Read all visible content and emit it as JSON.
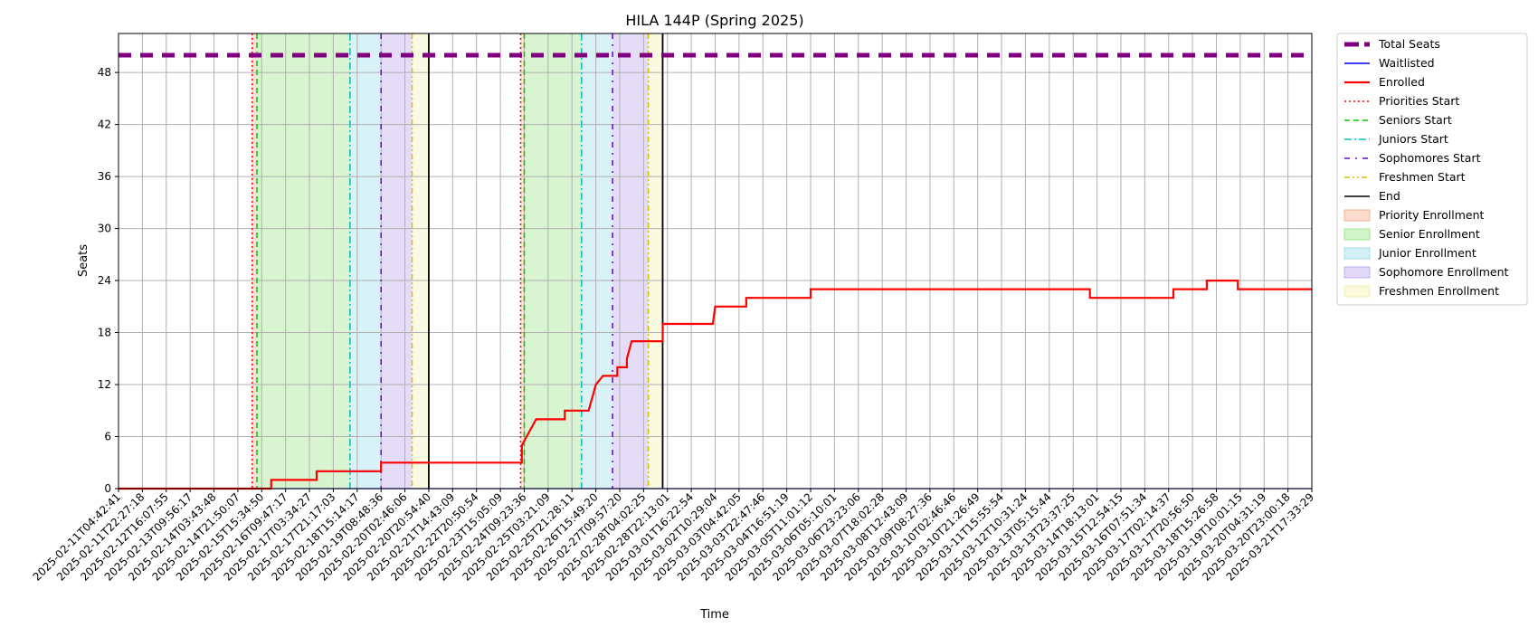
{
  "chart_data": {
    "type": "line",
    "title": "HILA 144P (Spring 2025)",
    "xlabel": "Time",
    "ylabel": "Seats",
    "ylim": [
      0,
      52.5
    ],
    "xlim": [
      0,
      50
    ],
    "y_ticks": [
      0,
      6,
      12,
      18,
      24,
      30,
      36,
      42,
      48
    ],
    "grid": true,
    "legend_position": "outside-right",
    "x_tick_labels": [
      "2025-02-11T04:42:41",
      "2025-02-11T22:27:18",
      "2025-02-12T16:07:55",
      "2025-02-13T09:56:17",
      "2025-02-14T03:43:48",
      "2025-02-14T21:50:07",
      "2025-02-15T15:34:50",
      "2025-02-16T09:47:17",
      "2025-02-17T03:34:27",
      "2025-02-17T21:17:03",
      "2025-02-18T15:14:17",
      "2025-02-19T08:48:36",
      "2025-02-20T02:46:06",
      "2025-02-20T20:54:40",
      "2025-02-21T14:43:09",
      "2025-02-22T20:50:54",
      "2025-02-23T15:05:09",
      "2025-02-24T09:23:36",
      "2025-02-25T03:21:09",
      "2025-02-25T21:28:11",
      "2025-02-26T15:49:20",
      "2025-02-27T09:57:20",
      "2025-02-28T04:02:25",
      "2025-02-28T22:13:01",
      "2025-03-01T16:22:54",
      "2025-03-02T10:29:04",
      "2025-03-03T04:42:05",
      "2025-03-03T22:47:46",
      "2025-03-04T16:51:19",
      "2025-03-05T11:01:12",
      "2025-03-06T05:10:01",
      "2025-03-06T23:23:06",
      "2025-03-07T18:02:28",
      "2025-03-08T12:43:09",
      "2025-03-09T08:27:36",
      "2025-03-10T02:46:46",
      "2025-03-10T21:26:49",
      "2025-03-11T15:55:54",
      "2025-03-12T10:31:24",
      "2025-03-13T05:15:44",
      "2025-03-13T23:37:25",
      "2025-03-14T18:13:01",
      "2025-03-15T12:54:15",
      "2025-03-16T07:51:34",
      "2025-03-17T02:14:37",
      "2025-03-17T20:56:50",
      "2025-03-18T15:26:58",
      "2025-03-19T10:01:15",
      "2025-03-20T04:31:19",
      "2025-03-20T23:00:18",
      "2025-03-21T17:33:29"
    ],
    "series": [
      {
        "name": "Total Seats",
        "color": "#800080",
        "style": "dashed-thick",
        "values": [
          [
            0,
            50
          ],
          [
            50,
            50
          ]
        ]
      },
      {
        "name": "Waitlisted",
        "color": "#0000ff",
        "style": "solid",
        "values": [
          [
            0,
            0
          ],
          [
            50,
            0
          ]
        ]
      },
      {
        "name": "Enrolled",
        "color": "#ff0000",
        "style": "step",
        "values": [
          [
            0,
            0
          ],
          [
            6.4,
            0
          ],
          [
            6.4,
            1
          ],
          [
            8.3,
            1
          ],
          [
            8.3,
            2
          ],
          [
            11,
            2
          ],
          [
            11,
            3
          ],
          [
            16.9,
            3
          ],
          [
            16.9,
            5
          ],
          [
            17.1,
            6
          ],
          [
            17.3,
            7
          ],
          [
            17.5,
            8
          ],
          [
            18.7,
            8
          ],
          [
            18.7,
            9
          ],
          [
            19.7,
            9
          ],
          [
            19.8,
            10
          ],
          [
            19.9,
            11
          ],
          [
            20.0,
            12
          ],
          [
            20.3,
            13
          ],
          [
            20.9,
            13
          ],
          [
            20.9,
            14
          ],
          [
            21.3,
            14
          ],
          [
            21.3,
            15
          ],
          [
            21.5,
            17
          ],
          [
            22.8,
            17
          ],
          [
            22.8,
            19
          ],
          [
            24.9,
            19
          ],
          [
            25.0,
            21
          ],
          [
            26.3,
            21
          ],
          [
            26.3,
            22
          ],
          [
            29.0,
            22
          ],
          [
            29.0,
            23
          ],
          [
            40.7,
            23
          ],
          [
            40.7,
            22
          ],
          [
            44.2,
            22
          ],
          [
            44.2,
            23
          ],
          [
            45.6,
            23
          ],
          [
            45.6,
            24
          ],
          [
            46.9,
            24
          ],
          [
            46.9,
            23
          ],
          [
            50,
            23
          ]
        ]
      }
    ],
    "vertical_markers": [
      {
        "name": "Priorities Start",
        "color": "#ff0000",
        "style": "dotted",
        "positions": [
          5.6,
          16.85
        ]
      },
      {
        "name": "Seniors Start",
        "color": "#00c800",
        "style": "dashed",
        "positions": [
          5.8,
          17.0
        ]
      },
      {
        "name": "Juniors Start",
        "color": "#00bfbf",
        "style": "dashdot",
        "positions": [
          9.7,
          19.4
        ]
      },
      {
        "name": "Sophomores Start",
        "color": "#6a00d8",
        "style": "loosely-dashdot",
        "positions": [
          11.0,
          20.7
        ]
      },
      {
        "name": "Freshmen Start",
        "color": "#d4c000",
        "style": "dashdotdot",
        "positions": [
          12.3,
          22.2
        ]
      },
      {
        "name": "End",
        "color": "#000000",
        "style": "solid",
        "positions": [
          13.0,
          22.8
        ]
      }
    ],
    "shaded_regions": [
      {
        "name": "Priority Enrollment",
        "color": "#f4a582",
        "ranges": [
          [
            5.6,
            5.8
          ],
          [
            16.85,
            17.0
          ]
        ]
      },
      {
        "name": "Senior Enrollment",
        "color": "#90e07a",
        "ranges": [
          [
            5.8,
            9.7
          ],
          [
            17.0,
            19.4
          ]
        ]
      },
      {
        "name": "Junior Enrollment",
        "color": "#8fd9e8",
        "ranges": [
          [
            9.7,
            11.0
          ],
          [
            19.4,
            20.7
          ]
        ]
      },
      {
        "name": "Sophomore Enrollment",
        "color": "#b59ce8",
        "ranges": [
          [
            11.0,
            12.3
          ],
          [
            20.7,
            22.2
          ]
        ]
      },
      {
        "name": "Freshmen Enrollment",
        "color": "#f2efa8",
        "ranges": [
          [
            12.3,
            13.0
          ],
          [
            22.2,
            22.8
          ]
        ]
      }
    ],
    "legend": [
      "Total Seats",
      "Waitlisted",
      "Enrolled",
      "Priorities Start",
      "Seniors Start",
      "Juniors Start",
      "Sophomores Start",
      "Freshmen Start",
      "End",
      "Priority Enrollment",
      "Senior Enrollment",
      "Junior Enrollment",
      "Sophomore Enrollment",
      "Freshmen Enrollment"
    ]
  }
}
